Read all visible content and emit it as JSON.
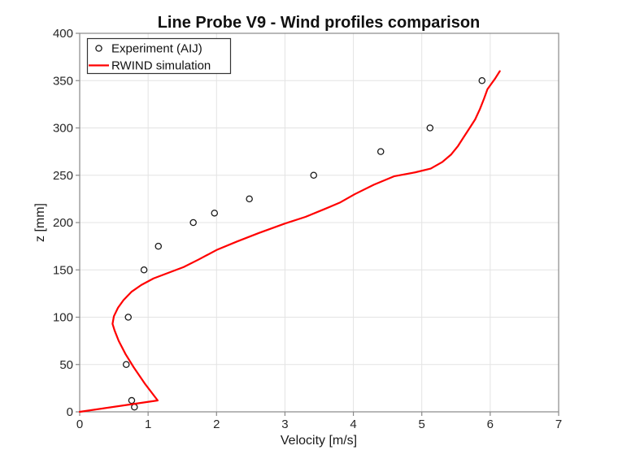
{
  "figure": {
    "background": "#ffffff"
  },
  "chart_data": {
    "type": "line",
    "title": "Line Probe V9 - Wind profiles comparison",
    "xlabel": "Velocity [m/s]",
    "ylabel": "z [mm]",
    "xlim": [
      0,
      7
    ],
    "ylim": [
      0,
      400
    ],
    "xticks": [
      0,
      1,
      2,
      3,
      4,
      5,
      6,
      7
    ],
    "yticks": [
      0,
      50,
      100,
      150,
      200,
      250,
      300,
      350,
      400
    ],
    "grid": true,
    "legend": {
      "position": "top-left",
      "entries": [
        "Experiment (AIJ)",
        "RWIND simulation"
      ]
    },
    "colors": {
      "experiment_marker": "#1a1a1a",
      "simulation_line": "#ff0000",
      "grid_line": "#e3e3e3",
      "spine": "#898989",
      "tick_label": "#262626",
      "legend_border": "#333333"
    },
    "series": [
      {
        "name": "Experiment (AIJ)",
        "type": "scatter",
        "marker": "open-circle",
        "color": "#1a1a1a",
        "points": [
          [
            0.8,
            5
          ],
          [
            0.76,
            12
          ],
          [
            0.68,
            50
          ],
          [
            0.71,
            100
          ],
          [
            0.94,
            150
          ],
          [
            1.15,
            175
          ],
          [
            1.66,
            200
          ],
          [
            1.97,
            210
          ],
          [
            2.48,
            225
          ],
          [
            3.42,
            250
          ],
          [
            4.4,
            275
          ],
          [
            5.12,
            300
          ],
          [
            5.88,
            350
          ]
        ]
      },
      {
        "name": "RWIND simulation",
        "type": "line",
        "color": "#ff0000",
        "points": [
          [
            0,
            0
          ],
          [
            1.14,
            12
          ],
          [
            0.95,
            30
          ],
          [
            0.79,
            47
          ],
          [
            0.67,
            61
          ],
          [
            0.57,
            75
          ],
          [
            0.51,
            86
          ],
          [
            0.48,
            93
          ],
          [
            0.5,
            101
          ],
          [
            0.56,
            110
          ],
          [
            0.64,
            118
          ],
          [
            0.76,
            127
          ],
          [
            0.9,
            134
          ],
          [
            1.08,
            141
          ],
          [
            1.3,
            147
          ],
          [
            1.52,
            153
          ],
          [
            1.74,
            161
          ],
          [
            2.0,
            171
          ],
          [
            2.3,
            180
          ],
          [
            2.62,
            189
          ],
          [
            3.0,
            199
          ],
          [
            3.3,
            206
          ],
          [
            3.57,
            214
          ],
          [
            3.8,
            221
          ],
          [
            4.02,
            230
          ],
          [
            4.3,
            240
          ],
          [
            4.6,
            249
          ],
          [
            4.9,
            253
          ],
          [
            5.13,
            257
          ],
          [
            5.3,
            264
          ],
          [
            5.43,
            272
          ],
          [
            5.53,
            281
          ],
          [
            5.61,
            290
          ],
          [
            5.7,
            300
          ],
          [
            5.78,
            309
          ],
          [
            5.85,
            320
          ],
          [
            5.91,
            331
          ],
          [
            5.96,
            341
          ],
          [
            6.02,
            347
          ],
          [
            6.07,
            352
          ],
          [
            6.14,
            360
          ]
        ]
      }
    ]
  }
}
